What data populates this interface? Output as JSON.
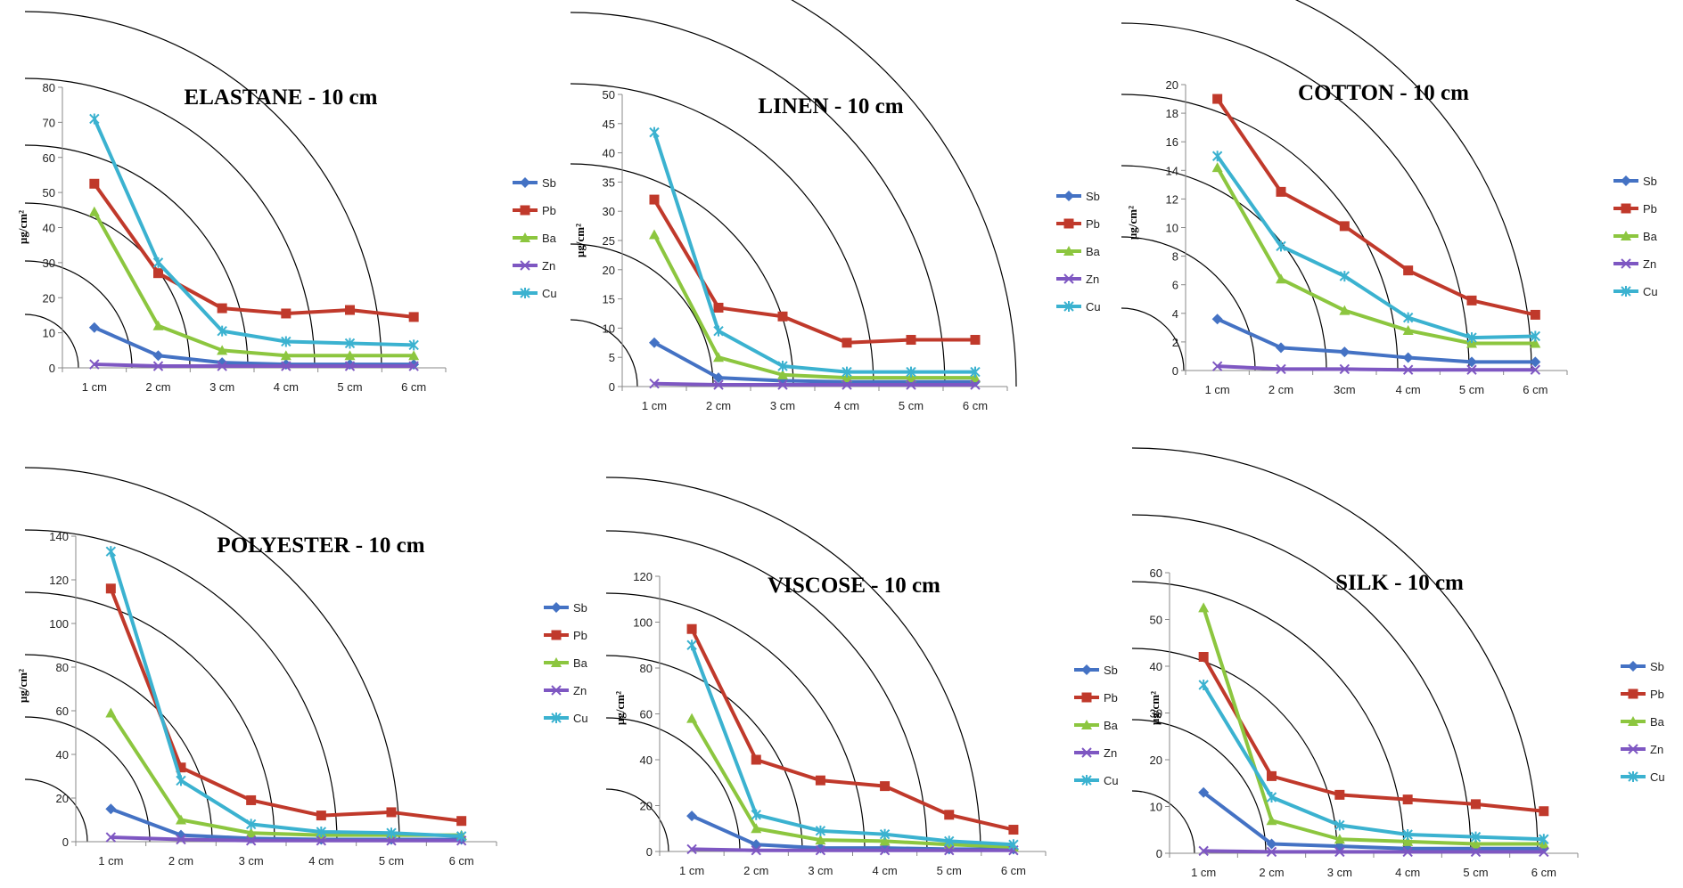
{
  "chart_data": [
    {
      "type": "line",
      "title": "ELASTANE - 10 cm",
      "ylabel": "µg/cm²",
      "categories": [
        "1 cm",
        "2 cm",
        "3 cm",
        "4 cm",
        "5 cm",
        "6 cm"
      ],
      "ylim": [
        0,
        80
      ],
      "yticks": [
        0,
        10,
        20,
        30,
        40,
        50,
        60,
        70,
        80
      ],
      "legend_position": "right",
      "series": [
        {
          "name": "Sb",
          "color": "#4472c4",
          "marker": "diamond",
          "values": [
            11.5,
            3.5,
            1.5,
            1.0,
            1.0,
            1.0
          ]
        },
        {
          "name": "Pb",
          "color": "#c0392b",
          "marker": "square",
          "values": [
            52.5,
            27,
            17,
            15.5,
            16.5,
            14.5
          ]
        },
        {
          "name": "Ba",
          "color": "#8cc63f",
          "marker": "triangle",
          "values": [
            44.5,
            12,
            5,
            3.5,
            3.5,
            3.5
          ]
        },
        {
          "name": "Zn",
          "color": "#7e57c2",
          "marker": "x",
          "values": [
            1.0,
            0.5,
            0.5,
            0.5,
            0.5,
            0.5
          ]
        },
        {
          "name": "Cu",
          "color": "#3bb2d0",
          "marker": "star",
          "values": [
            71,
            30,
            10.5,
            7.5,
            7,
            6.5
          ]
        }
      ]
    },
    {
      "type": "line",
      "title": "LINEN - 10 cm",
      "ylabel": "µg/cm²",
      "categories": [
        "1 cm",
        "2 cm",
        "3 cm",
        "4 cm",
        "5 cm",
        "6 cm"
      ],
      "ylim": [
        0,
        50
      ],
      "yticks": [
        0,
        5,
        10,
        15,
        20,
        25,
        30,
        35,
        40,
        45,
        50
      ],
      "legend_position": "right",
      "series": [
        {
          "name": "Sb",
          "color": "#4472c4",
          "marker": "diamond",
          "values": [
            7.5,
            1.5,
            1.0,
            0.8,
            0.8,
            0.8
          ]
        },
        {
          "name": "Pb",
          "color": "#c0392b",
          "marker": "square",
          "values": [
            32,
            13.5,
            12,
            7.5,
            8,
            8
          ]
        },
        {
          "name": "Ba",
          "color": "#8cc63f",
          "marker": "triangle",
          "values": [
            26,
            5,
            2,
            1.5,
            1.5,
            1.5
          ]
        },
        {
          "name": "Zn",
          "color": "#7e57c2",
          "marker": "x",
          "values": [
            0.5,
            0.3,
            0.3,
            0.3,
            0.3,
            0.3
          ]
        },
        {
          "name": "Cu",
          "color": "#3bb2d0",
          "marker": "star",
          "values": [
            43.5,
            9.5,
            3.5,
            2.5,
            2.5,
            2.5
          ]
        }
      ]
    },
    {
      "type": "line",
      "title": "COTTON - 10 cm",
      "ylabel": "µg/cm²",
      "categories": [
        "1 cm",
        "2 cm",
        "3cm",
        "4 cm",
        "5 cm",
        "6 cm"
      ],
      "ylim": [
        0,
        20
      ],
      "yticks": [
        0,
        2,
        4,
        6,
        8,
        10,
        12,
        14,
        16,
        18,
        20
      ],
      "legend_position": "right",
      "series": [
        {
          "name": "Sb",
          "color": "#4472c4",
          "marker": "diamond",
          "values": [
            3.6,
            1.6,
            1.3,
            0.9,
            0.6,
            0.6
          ]
        },
        {
          "name": "Pb",
          "color": "#c0392b",
          "marker": "square",
          "values": [
            19,
            12.5,
            10.1,
            7,
            4.9,
            3.9
          ]
        },
        {
          "name": "Ba",
          "color": "#8cc63f",
          "marker": "triangle",
          "values": [
            14.2,
            6.4,
            4.2,
            2.8,
            1.9,
            1.9
          ]
        },
        {
          "name": "Zn",
          "color": "#7e57c2",
          "marker": "x",
          "values": [
            0.3,
            0.1,
            0.1,
            0.05,
            0.05,
            0.05
          ]
        },
        {
          "name": "Cu",
          "color": "#3bb2d0",
          "marker": "star",
          "values": [
            15,
            8.7,
            6.6,
            3.7,
            2.3,
            2.4
          ]
        }
      ]
    },
    {
      "type": "line",
      "title": "POLYESTER - 10 cm",
      "ylabel": "µg/cm²",
      "categories": [
        "1 cm",
        "2 cm",
        "3 cm",
        "4 cm",
        "5 cm",
        "6 cm"
      ],
      "ylim": [
        0,
        140
      ],
      "yticks": [
        0,
        20,
        40,
        60,
        80,
        100,
        120,
        140
      ],
      "legend_position": "right",
      "series": [
        {
          "name": "Sb",
          "color": "#4472c4",
          "marker": "diamond",
          "values": [
            15,
            3,
            1.5,
            1,
            1,
            1
          ]
        },
        {
          "name": "Pb",
          "color": "#c0392b",
          "marker": "square",
          "values": [
            116,
            34,
            19,
            12,
            13.5,
            9.5
          ]
        },
        {
          "name": "Ba",
          "color": "#8cc63f",
          "marker": "triangle",
          "values": [
            59,
            10,
            4,
            3,
            3,
            3
          ]
        },
        {
          "name": "Zn",
          "color": "#7e57c2",
          "marker": "x",
          "values": [
            2,
            1,
            0.5,
            0.5,
            0.5,
            0.5
          ]
        },
        {
          "name": "Cu",
          "color": "#3bb2d0",
          "marker": "star",
          "values": [
            133,
            28,
            8,
            4.5,
            4,
            2.5
          ]
        }
      ]
    },
    {
      "type": "line",
      "title": "VISCOSE - 10 cm",
      "ylabel": "µg/cm²",
      "categories": [
        "1 cm",
        "2 cm",
        "3 cm",
        "4 cm",
        "5 cm",
        "6 cm"
      ],
      "ylim": [
        0,
        120
      ],
      "yticks": [
        0,
        20,
        40,
        60,
        80,
        100,
        120
      ],
      "legend_position": "right",
      "series": [
        {
          "name": "Sb",
          "color": "#4472c4",
          "marker": "diamond",
          "values": [
            15.5,
            3,
            1.5,
            1.5,
            1,
            1
          ]
        },
        {
          "name": "Pb",
          "color": "#c0392b",
          "marker": "square",
          "values": [
            97,
            40,
            31,
            28.5,
            16,
            9.5
          ]
        },
        {
          "name": "Ba",
          "color": "#8cc63f",
          "marker": "triangle",
          "values": [
            58,
            10,
            5,
            4.5,
            3,
            2
          ]
        },
        {
          "name": "Zn",
          "color": "#7e57c2",
          "marker": "x",
          "values": [
            1,
            0.5,
            0.5,
            0.5,
            0.5,
            0.5
          ]
        },
        {
          "name": "Cu",
          "color": "#3bb2d0",
          "marker": "star",
          "values": [
            90,
            16,
            9,
            7.5,
            4.5,
            3
          ]
        }
      ]
    },
    {
      "type": "line",
      "title": "SILK - 10 cm",
      "ylabel": "µg/cm²",
      "categories": [
        "1 cm",
        "2 cm",
        "3 cm",
        "4 cm",
        "5 cm",
        "6 cm"
      ],
      "ylim": [
        0,
        60
      ],
      "yticks": [
        0,
        10,
        20,
        30,
        40,
        50,
        60
      ],
      "legend_position": "right",
      "series": [
        {
          "name": "Sb",
          "color": "#4472c4",
          "marker": "diamond",
          "values": [
            13,
            2,
            1.5,
            1,
            1,
            1
          ]
        },
        {
          "name": "Pb",
          "color": "#c0392b",
          "marker": "square",
          "values": [
            42,
            16.5,
            12.5,
            11.5,
            10.5,
            9
          ]
        },
        {
          "name": "Ba",
          "color": "#8cc63f",
          "marker": "triangle",
          "values": [
            52.5,
            7,
            3,
            2.5,
            2,
            2
          ]
        },
        {
          "name": "Zn",
          "color": "#7e57c2",
          "marker": "x",
          "values": [
            0.5,
            0.3,
            0.3,
            0.3,
            0.3,
            0.3
          ]
        },
        {
          "name": "Cu",
          "color": "#3bb2d0",
          "marker": "star",
          "values": [
            36,
            12,
            6,
            4,
            3.5,
            3
          ]
        }
      ]
    }
  ]
}
